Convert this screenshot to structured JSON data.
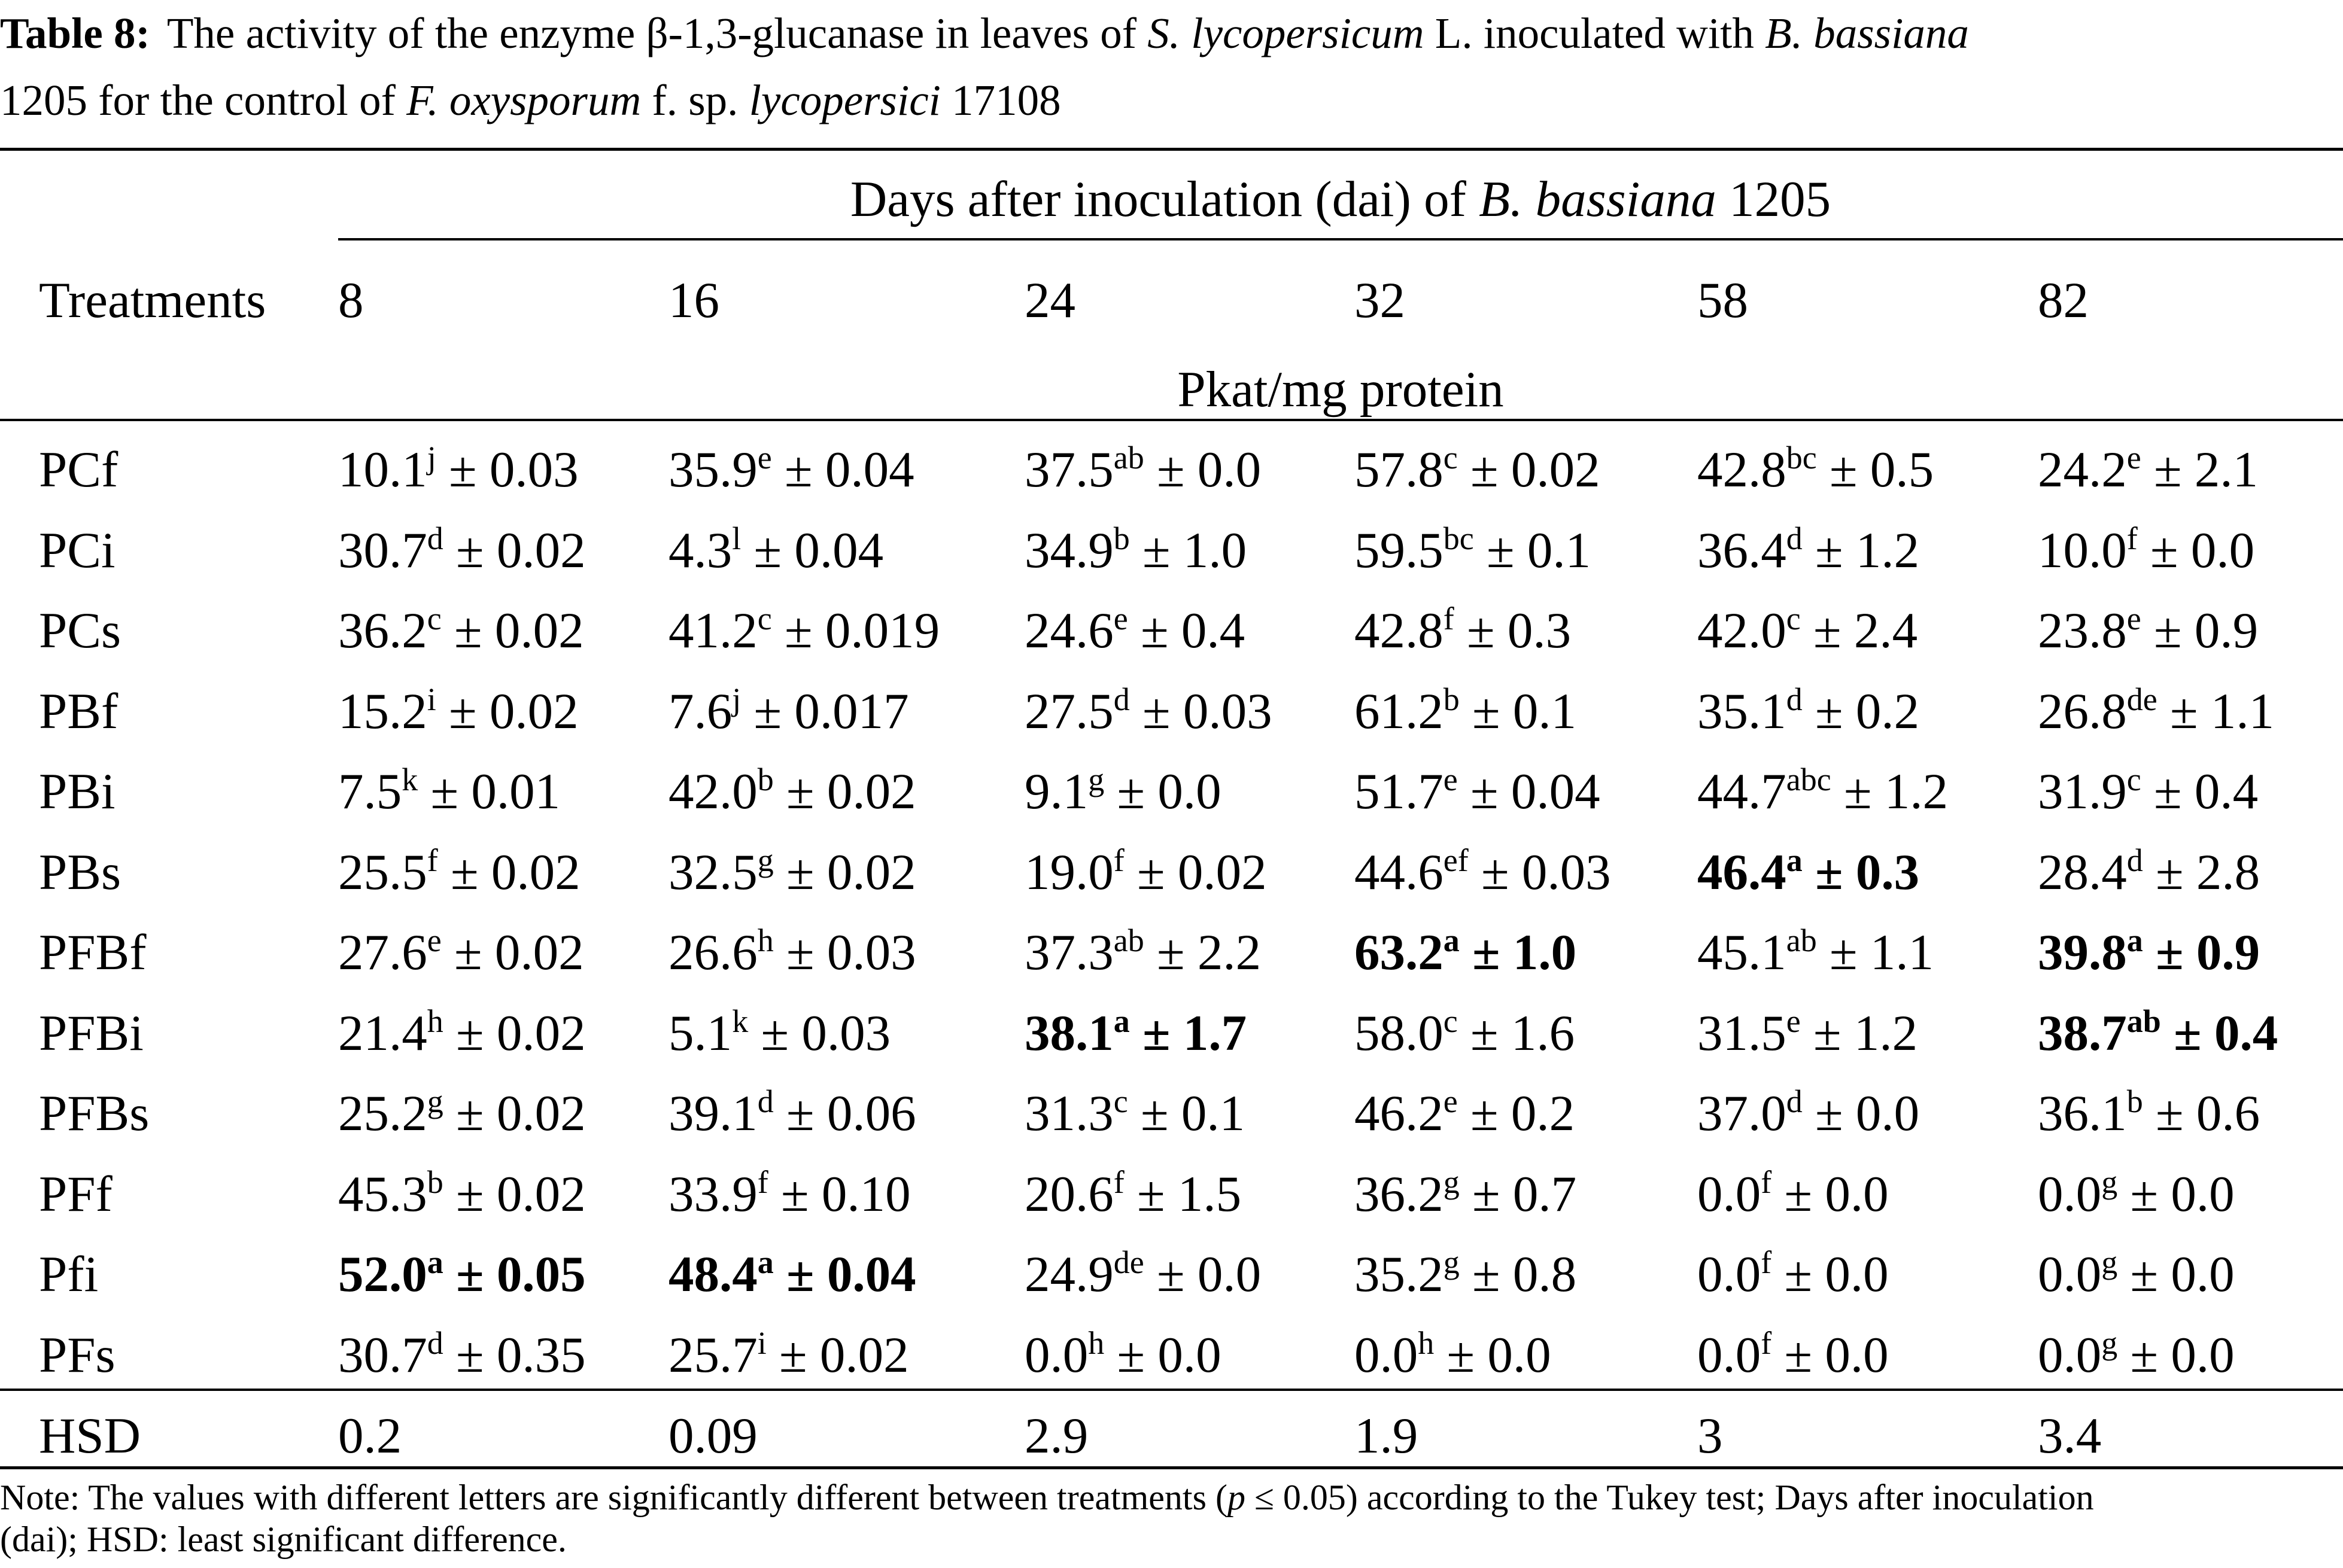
{
  "caption": {
    "label": "Table 8:",
    "line1": [
      {
        "t": "The activity of the enzyme β-1,3-glucanase in leaves of ",
        "i": false
      },
      {
        "t": "S. lycopersicum",
        "i": true
      },
      {
        "t": " L. inoculated with ",
        "i": false
      },
      {
        "t": "B. bassiana",
        "i": true
      }
    ],
    "line2": [
      {
        "t": "1205 for the control of ",
        "i": false
      },
      {
        "t": "F. oxysporum",
        "i": true
      },
      {
        "t": " f. sp. ",
        "i": false
      },
      {
        "t": "lycopersici",
        "i": true
      },
      {
        "t": " 17108",
        "i": false
      }
    ]
  },
  "header": {
    "group_label_pre": "Days after inoculation (dai) of ",
    "group_label_italic": "B. bassiana",
    "group_label_post": " 1205",
    "treatments_label": "Treatments",
    "days": [
      "8",
      "16",
      "24",
      "32",
      "58",
      "82"
    ],
    "unit": "Pkat/mg protein"
  },
  "rows": [
    {
      "name": "PCf",
      "cells": [
        {
          "v": "10.1",
          "s": "j",
          "e": "± 0.03",
          "b": false
        },
        {
          "v": "35.9",
          "s": "e",
          "e": "± 0.04",
          "b": false
        },
        {
          "v": "37.5",
          "s": "ab",
          "e": "± 0.0",
          "b": false
        },
        {
          "v": "57.8",
          "s": "c",
          "e": "± 0.02",
          "b": false
        },
        {
          "v": "42.8",
          "s": "bc",
          "e": "± 0.5",
          "b": false
        },
        {
          "v": "24.2",
          "s": "e",
          "e": "± 2.1",
          "b": false
        }
      ]
    },
    {
      "name": "PCi",
      "cells": [
        {
          "v": "30.7",
          "s": "d",
          "e": "± 0.02",
          "b": false
        },
        {
          "v": "4.3",
          "s": "l",
          "e": "± 0.04",
          "b": false
        },
        {
          "v": "34.9",
          "s": "b",
          "e": "± 1.0",
          "b": false
        },
        {
          "v": "59.5",
          "s": "bc",
          "e": "± 0.1",
          "b": false
        },
        {
          "v": "36.4",
          "s": "d",
          "e": "± 1.2",
          "b": false
        },
        {
          "v": "10.0",
          "s": "f",
          "e": "± 0.0",
          "b": false
        }
      ]
    },
    {
      "name": "PCs",
      "cells": [
        {
          "v": "36.2",
          "s": "c",
          "e": "± 0.02",
          "b": false
        },
        {
          "v": "41.2",
          "s": "c",
          "e": "± 0.019",
          "b": false
        },
        {
          "v": "24.6",
          "s": "e",
          "e": "± 0.4",
          "b": false
        },
        {
          "v": "42.8",
          "s": "f",
          "e": "± 0.3",
          "b": false
        },
        {
          "v": "42.0",
          "s": "c",
          "e": "± 2.4",
          "b": false
        },
        {
          "v": "23.8",
          "s": "e",
          "e": "± 0.9",
          "b": false
        }
      ]
    },
    {
      "name": "PBf",
      "cells": [
        {
          "v": "15.2",
          "s": "i",
          "e": "± 0.02",
          "b": false
        },
        {
          "v": "7.6",
          "s": "j",
          "e": "± 0.017",
          "b": false
        },
        {
          "v": "27.5",
          "s": "d",
          "e": "± 0.03",
          "b": false
        },
        {
          "v": "61.2",
          "s": "b",
          "e": "± 0.1",
          "b": false
        },
        {
          "v": "35.1",
          "s": "d",
          "e": "± 0.2",
          "b": false
        },
        {
          "v": "26.8",
          "s": "de",
          "e": "± 1.1",
          "b": false
        }
      ]
    },
    {
      "name": "PBi",
      "cells": [
        {
          "v": "7.5",
          "s": "k",
          "e": "± 0.01",
          "b": false
        },
        {
          "v": "42.0",
          "s": "b",
          "e": "± 0.02",
          "b": false
        },
        {
          "v": "9.1",
          "s": "g",
          "e": "± 0.0",
          "b": false
        },
        {
          "v": "51.7",
          "s": "e",
          "e": "± 0.04",
          "b": false
        },
        {
          "v": "44.7",
          "s": "abc",
          "e": "± 1.2",
          "b": false
        },
        {
          "v": "31.9",
          "s": "c",
          "e": "± 0.4",
          "b": false
        }
      ]
    },
    {
      "name": "PBs",
      "cells": [
        {
          "v": "25.5",
          "s": "f",
          "e": "± 0.02",
          "b": false
        },
        {
          "v": "32.5",
          "s": "g",
          "e": "± 0.02",
          "b": false
        },
        {
          "v": "19.0",
          "s": "f",
          "e": "± 0.02",
          "b": false
        },
        {
          "v": "44.6",
          "s": "ef",
          "e": "± 0.03",
          "b": false
        },
        {
          "v": "46.4",
          "s": "a",
          "e": "± 0.3",
          "b": true
        },
        {
          "v": "28.4",
          "s": "d",
          "e": "± 2.8",
          "b": false
        }
      ]
    },
    {
      "name": "PFBf",
      "cells": [
        {
          "v": "27.6",
          "s": "e",
          "e": "± 0.02",
          "b": false
        },
        {
          "v": "26.6",
          "s": "h",
          "e": "± 0.03",
          "b": false
        },
        {
          "v": "37.3",
          "s": "ab",
          "e": "± 2.2",
          "b": false
        },
        {
          "v": "63.2",
          "s": "a",
          "e": "± 1.0",
          "b": true
        },
        {
          "v": "45.1",
          "s": "ab",
          "e": "± 1.1",
          "b": false
        },
        {
          "v": "39.8",
          "s": "a",
          "e": "± 0.9",
          "b": true
        }
      ]
    },
    {
      "name": "PFBi",
      "cells": [
        {
          "v": "21.4",
          "s": "h",
          "e": "± 0.02",
          "b": false
        },
        {
          "v": "5.1",
          "s": "k",
          "e": "± 0.03",
          "b": false
        },
        {
          "v": "38.1",
          "s": "a",
          "e": "± 1.7",
          "b": true
        },
        {
          "v": "58.0",
          "s": "c",
          "e": "± 1.6",
          "b": false
        },
        {
          "v": "31.5",
          "s": "e",
          "e": "± 1.2",
          "b": false
        },
        {
          "v": "38.7",
          "s": "ab",
          "e": "± 0.4",
          "b": true
        }
      ]
    },
    {
      "name": "PFBs",
      "cells": [
        {
          "v": "25.2",
          "s": "g",
          "e": "± 0.02",
          "b": false
        },
        {
          "v": "39.1",
          "s": "d",
          "e": "± 0.06",
          "b": false
        },
        {
          "v": "31.3",
          "s": "c",
          "e": "± 0.1",
          "b": false
        },
        {
          "v": "46.2",
          "s": "e",
          "e": "± 0.2",
          "b": false
        },
        {
          "v": "37.0",
          "s": "d",
          "e": "± 0.0",
          "b": false
        },
        {
          "v": "36.1",
          "s": "b",
          "e": "± 0.6",
          "b": false
        }
      ]
    },
    {
      "name": "PFf",
      "cells": [
        {
          "v": "45.3",
          "s": "b",
          "e": "± 0.02",
          "b": false
        },
        {
          "v": "33.9",
          "s": "f",
          "e": "± 0.10",
          "b": false
        },
        {
          "v": "20.6",
          "s": "f",
          "e": "± 1.5",
          "b": false
        },
        {
          "v": "36.2",
          "s": "g",
          "e": "± 0.7",
          "b": false
        },
        {
          "v": "0.0",
          "s": "f",
          "e": "± 0.0",
          "b": false
        },
        {
          "v": "0.0",
          "s": "g",
          "e": "± 0.0",
          "b": false
        }
      ]
    },
    {
      "name": "Pfi",
      "cells": [
        {
          "v": "52.0",
          "s": "a",
          "e": "± 0.05",
          "b": true
        },
        {
          "v": "48.4",
          "s": "a",
          "e": "± 0.04",
          "b": true
        },
        {
          "v": "24.9",
          "s": "de",
          "e": "± 0.0",
          "b": false
        },
        {
          "v": "35.2",
          "s": "g",
          "e": "± 0.8",
          "b": false
        },
        {
          "v": "0.0",
          "s": "f",
          "e": "± 0.0",
          "b": false
        },
        {
          "v": "0.0",
          "s": "g",
          "e": "± 0.0",
          "b": false
        }
      ]
    },
    {
      "name": "PFs",
      "cells": [
        {
          "v": "30.7",
          "s": "d",
          "e": "± 0.35",
          "b": false
        },
        {
          "v": "25.7",
          "s": "i",
          "e": "± 0.02",
          "b": false
        },
        {
          "v": "0.0",
          "s": "h",
          "e": "± 0.0",
          "b": false
        },
        {
          "v": "0.0",
          "s": "h",
          "e": "± 0.0",
          "b": false
        },
        {
          "v": "0.0",
          "s": "f",
          "e": "± 0.0",
          "b": false
        },
        {
          "v": "0.0",
          "s": "g",
          "e": "± 0.0",
          "b": false
        }
      ]
    }
  ],
  "hsd": {
    "label": "HSD",
    "values": [
      "0.2",
      "0.09",
      "2.9",
      "1.9",
      "3",
      "3.4"
    ]
  },
  "note": {
    "line1": [
      {
        "t": "Note: The values with different letters are significantly different between treatments (",
        "i": false
      },
      {
        "t": "p",
        "i": true
      },
      {
        "t": " ≤ 0.05) according to the Tukey test; Days after inoculation",
        "i": false
      }
    ],
    "line2": [
      {
        "t": "(dai); HSD: least significant difference.",
        "i": false
      }
    ]
  }
}
